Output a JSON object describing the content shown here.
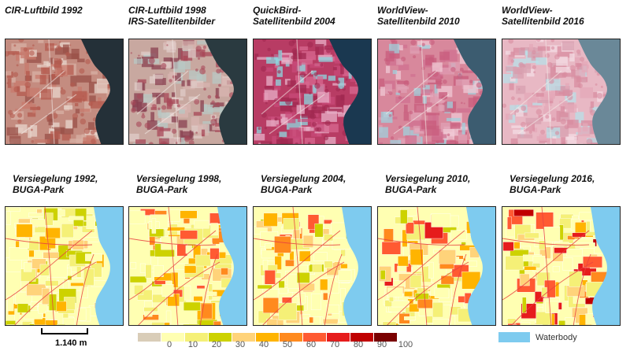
{
  "top_row": [
    {
      "caption": "CIR-Luftbild 1992",
      "style": "cir1992"
    },
    {
      "caption": "CIR-Luftbild 1998\nIRS-Satellitenbilder",
      "style": "cir1998"
    },
    {
      "caption": "QuickBird-\nSatellitenbild 2004",
      "style": "qb2004"
    },
    {
      "caption": "WorldView-\nSatellitenbild 2010",
      "style": "wv2010"
    },
    {
      "caption": "WorldView-\nSatellitenbild 2016",
      "style": "wv2016"
    }
  ],
  "bottom_row": [
    {
      "caption": "Versiegelung 1992,\nBUGA-Park",
      "year": 1992
    },
    {
      "caption": "Versiegelung 1998,\nBUGA-Park",
      "year": 1998
    },
    {
      "caption": "Versiegelung 2004,\nBUGA-Park",
      "year": 2004
    },
    {
      "caption": "Versiegelung 2010,\nBUGA-Park",
      "year": 2010
    },
    {
      "caption": "Versiegelung 2016,\nBUGA-Park",
      "year": 2016
    }
  ],
  "scale_bar": {
    "label": "1.140 m"
  },
  "legend": {
    "classes": [
      {
        "label": "0",
        "color": "#d9cdb8"
      },
      {
        "label": "10",
        "color": "#ffffb2"
      },
      {
        "label": "20",
        "color": "#f5f077"
      },
      {
        "label": "30",
        "color": "#cdd200"
      },
      {
        "label": "40",
        "color": "#ffd37a"
      },
      {
        "label": "50",
        "color": "#ffb400"
      },
      {
        "label": "60",
        "color": "#ff8a1e"
      },
      {
        "label": "70",
        "color": "#ff5a32"
      },
      {
        "label": "80",
        "color": "#e61c1c"
      },
      {
        "label": "90",
        "color": "#c00000"
      },
      {
        "label": "100",
        "color": "#7a0000"
      }
    ],
    "waterbody": {
      "label": "Waterbody",
      "color": "#7ecbef"
    }
  }
}
